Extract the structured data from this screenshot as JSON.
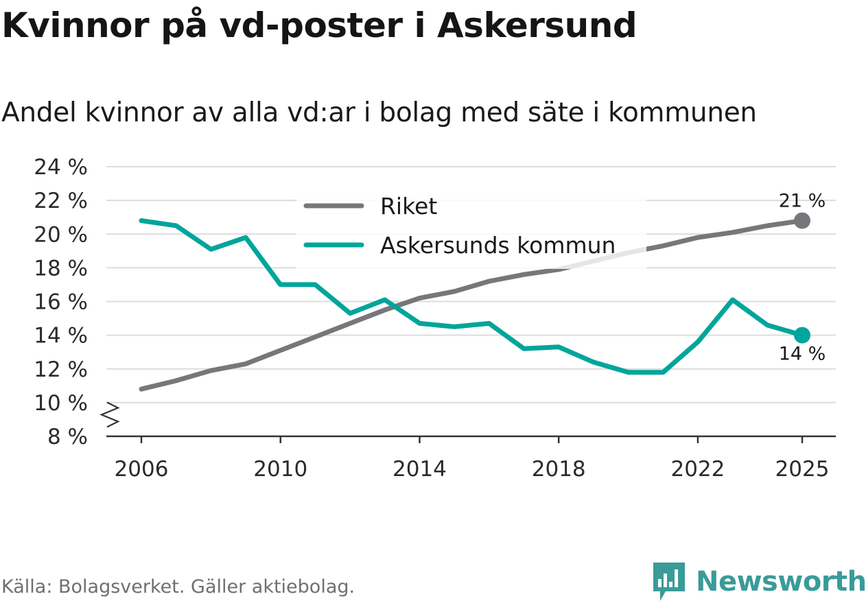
{
  "title": "Kvinnor på vd-poster i Askersund",
  "subtitle": "Andel kvinnor av alla vd:ar i bolag med säte i kommunen",
  "source": "Källa: Bolagsverket. Gäller aktiebolag.",
  "brand": {
    "name": "Newsworthy",
    "logo_icon": "bar-chart-logo-icon",
    "color": "#3a9b98"
  },
  "chart_data": {
    "type": "line",
    "title": "Kvinnor på vd-poster i Askersund",
    "subtitle": "Andel kvinnor av alla vd:ar i bolag med säte i kommunen",
    "xlabel": "",
    "ylabel": "",
    "x": [
      2006,
      2007,
      2008,
      2009,
      2010,
      2011,
      2012,
      2013,
      2014,
      2015,
      2016,
      2017,
      2018,
      2019,
      2020,
      2021,
      2022,
      2023,
      2024,
      2025
    ],
    "xlim": [
      2006,
      2025
    ],
    "ylim": [
      8,
      24
    ],
    "x_ticks": [
      2006,
      2010,
      2014,
      2018,
      2022,
      2025
    ],
    "x_tick_labels": [
      "2006",
      "2010",
      "2014",
      "2018",
      "2022",
      "2025"
    ],
    "y_ticks": [
      8,
      10,
      12,
      14,
      16,
      18,
      20,
      22,
      24
    ],
    "y_tick_labels": [
      "8 %",
      "10 %",
      "12 %",
      "14 %",
      "16 %",
      "18 %",
      "20 %",
      "22 %",
      "24 %"
    ],
    "grid": true,
    "axis_break": true,
    "legend_position": "top-center",
    "series": [
      {
        "name": "Riket",
        "color": "#77767b",
        "values": [
          10.8,
          11.3,
          11.9,
          12.3,
          13.1,
          13.9,
          14.7,
          15.5,
          16.2,
          16.6,
          17.2,
          17.6,
          17.9,
          18.4,
          18.9,
          19.3,
          19.8,
          20.1,
          20.5,
          20.8
        ],
        "end_label": "21 %"
      },
      {
        "name": "Askersunds kommun",
        "color": "#00a59b",
        "values": [
          20.8,
          20.5,
          19.1,
          19.8,
          17.0,
          17.0,
          15.3,
          16.1,
          14.7,
          14.5,
          14.7,
          13.2,
          13.3,
          12.4,
          11.8,
          11.8,
          13.6,
          16.1,
          14.6,
          14.0
        ],
        "end_label": "14 %"
      }
    ]
  }
}
